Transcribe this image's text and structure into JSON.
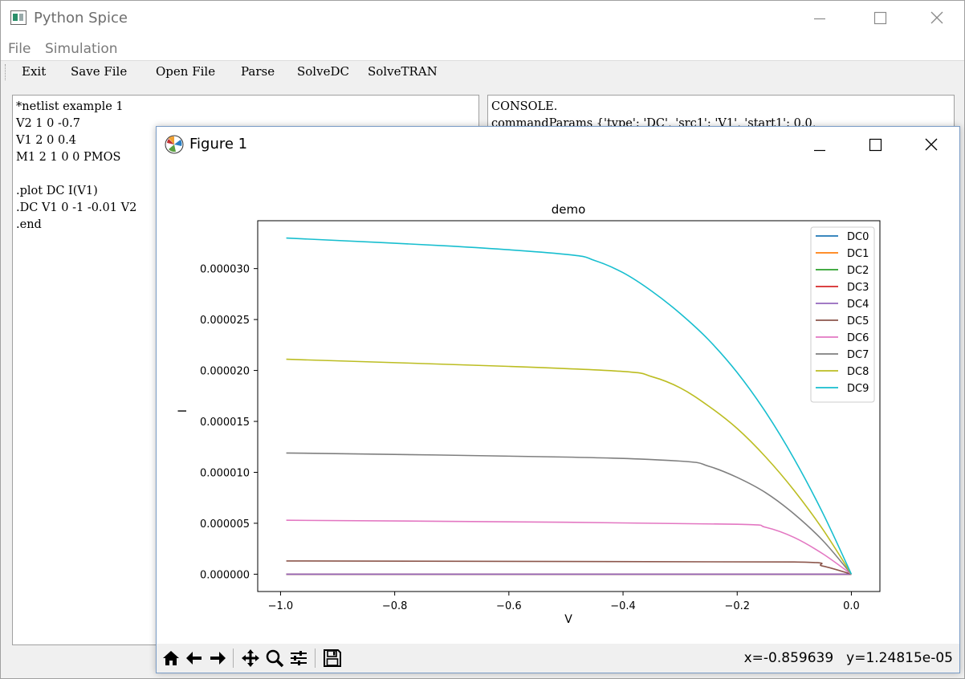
{
  "app": {
    "title": "Python Spice",
    "menu": [
      "File",
      "Simulation"
    ],
    "toolbar": [
      "Exit",
      "Save File",
      "Open File",
      "Parse",
      "SolveDC",
      "SolveTRAN"
    ]
  },
  "editor": {
    "lines": [
      "*netlist example 1",
      "V2 1 0 -0.7",
      "V1 2 0 0.4",
      "M1 2 1 0 0 PMOS",
      "",
      ".plot DC I(V1)",
      ".DC V1 0 -1 -0.01 V2",
      ".end"
    ]
  },
  "console": {
    "lines": [
      "CONSOLE.",
      "commandParams {'type': 'DC', 'src1': 'V1', 'start1': 0.0,"
    ]
  },
  "figure": {
    "title": "Figure 1",
    "coords": {
      "x": "x=-0.859639",
      "y": "y=1.24815e-05"
    },
    "toolbar_icons": [
      "home-icon",
      "back-icon",
      "forward-icon",
      "pan-icon",
      "zoom-icon",
      "configure-icon",
      "save-icon"
    ]
  },
  "chart_data": {
    "type": "line",
    "title": "demo",
    "xlabel": "V",
    "ylabel": "I",
    "xlim": [
      -1.04,
      0.05
    ],
    "ylim": [
      -1.7e-06,
      3.47e-05
    ],
    "xticks": [
      -1.0,
      -0.8,
      -0.6,
      -0.4,
      -0.2,
      0.0
    ],
    "xtick_labels": [
      "−1.0",
      "−0.8",
      "−0.6",
      "−0.4",
      "−0.2",
      "0.0"
    ],
    "yticks": [
      0,
      5e-06,
      1e-05,
      1.5e-05,
      2e-05,
      2.5e-05,
      3e-05
    ],
    "ytick_labels": [
      "0.000000",
      "0.000005",
      "0.000010",
      "0.000015",
      "0.000020",
      "0.000025",
      "0.000030"
    ],
    "legend_position": "top-right",
    "grid": false,
    "colors": [
      "#1f77b4",
      "#ff7f0e",
      "#2ca02c",
      "#d62728",
      "#9467bd",
      "#8c564b",
      "#e377c2",
      "#7f7f7f",
      "#bcbd22",
      "#17becf"
    ],
    "series": [
      {
        "name": "DC0",
        "x": [
          -0.99,
          0.0
        ],
        "y": [
          0.0,
          0.0
        ]
      },
      {
        "name": "DC1",
        "x": [
          -0.99,
          0.0
        ],
        "y": [
          0.0,
          0.0
        ]
      },
      {
        "name": "DC2",
        "x": [
          -0.99,
          0.0
        ],
        "y": [
          0.0,
          0.0
        ]
      },
      {
        "name": "DC3",
        "x": [
          -0.99,
          0.0
        ],
        "y": [
          0.0,
          0.0
        ]
      },
      {
        "name": "DC4",
        "x": [
          -0.99,
          0.0
        ],
        "y": [
          0.0,
          0.0
        ]
      },
      {
        "name": "DC5",
        "x": [
          -0.99,
          -0.5,
          -0.1,
          -0.05,
          0.0
        ],
        "y": [
          1.3e-06,
          1.25e-06,
          1.2e-06,
          8e-07,
          0.0
        ]
      },
      {
        "name": "DC6",
        "x": [
          -0.99,
          -0.5,
          -0.2,
          -0.15,
          -0.1,
          -0.05,
          0.0
        ],
        "y": [
          5.3e-06,
          5.1e-06,
          4.9e-06,
          4.6e-06,
          3.6e-06,
          2e-06,
          0.0
        ]
      },
      {
        "name": "DC7",
        "x": [
          -0.99,
          -0.5,
          -0.3,
          -0.25,
          -0.2,
          -0.15,
          -0.1,
          -0.05,
          0.0
        ],
        "y": [
          1.19e-05,
          1.15e-05,
          1.11e-05,
          1.06e-05,
          9.5e-06,
          8e-06,
          5.9e-06,
          3.3e-06,
          0.0
        ]
      },
      {
        "name": "DC8",
        "x": [
          -0.99,
          -0.6,
          -0.4,
          -0.35,
          -0.3,
          -0.25,
          -0.2,
          -0.15,
          -0.1,
          -0.05,
          0.0
        ],
        "y": [
          2.11e-05,
          2.04e-05,
          1.99e-05,
          1.94e-05,
          1.83e-05,
          1.65e-05,
          1.43e-05,
          1.15e-05,
          8.2e-06,
          4.4e-06,
          0.0
        ]
      },
      {
        "name": "DC9",
        "x": [
          -0.99,
          -0.7,
          -0.5,
          -0.45,
          -0.4,
          -0.35,
          -0.3,
          -0.25,
          -0.2,
          -0.15,
          -0.1,
          -0.05,
          0.0
        ],
        "y": [
          3.3e-05,
          3.22e-05,
          3.14e-05,
          3.08e-05,
          2.96e-05,
          2.78e-05,
          2.56e-05,
          2.3e-05,
          1.98e-05,
          1.59e-05,
          1.13e-05,
          6e-06,
          0.0
        ]
      }
    ]
  }
}
